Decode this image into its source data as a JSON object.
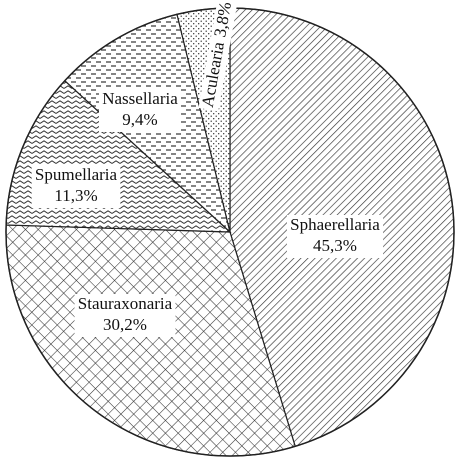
{
  "chart_data": {
    "type": "pie",
    "categories": [
      "Sphaerellaria",
      "Stauraxonaria",
      "Spumellaria",
      "Nassellaria",
      "Aculearia"
    ],
    "values": [
      45.3,
      30.2,
      11.3,
      9.4,
      3.8
    ],
    "value_labels": [
      "45,3%",
      "30,2%",
      "11,3%",
      "9,4%",
      "3,8%"
    ]
  }
}
